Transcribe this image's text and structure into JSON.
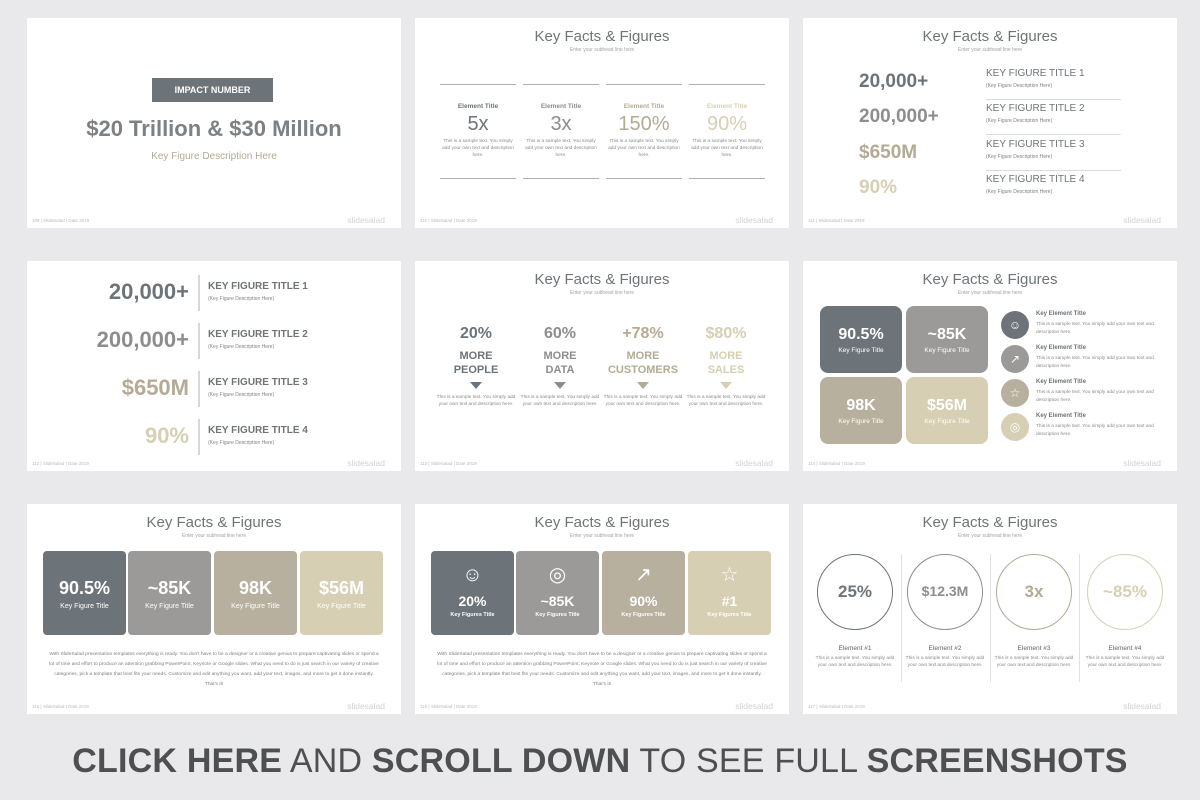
{
  "common": {
    "title": "Key Facts & Figures",
    "subhead": "Enter your subhead line here",
    "brand": "slidesalad"
  },
  "footers": [
    "108 | SlideSalad | Date 2019",
    "110 | SlideSalad | Date 2019",
    "111 | SlideSalad | Date 2019",
    "112 | SlideSalad | Date 2019",
    "113 | SlideSalad | Date 2019",
    "114 | SlideSalad | Date 2019",
    "115 | SlideSalad | Date 2019",
    "116 | SlideSalad | Date 2019",
    "117 | SlideSalad | Date 2019"
  ],
  "slide1": {
    "badge": "IMPACT NUMBER",
    "headline": "$20 Trillion & $30 Million",
    "desc": "Key Figure Description Here"
  },
  "slide2": {
    "sample": "This is a sample text. You simply add your own text and description here.",
    "cols": [
      {
        "title": "Element Title",
        "value": "5x"
      },
      {
        "title": "Element Title",
        "value": "3x"
      },
      {
        "title": "Element Title",
        "value": "150%"
      },
      {
        "title": "Element Title",
        "value": "90%"
      }
    ]
  },
  "slide3": {
    "rows": [
      {
        "value": "20,000+",
        "title": "KEY FIGURE TITLE 1",
        "desc": "(Key Figure Description Here)"
      },
      {
        "value": "200,000+",
        "title": "KEY FIGURE TITLE 2",
        "desc": "(Key Figure Description Here)"
      },
      {
        "value": "$650M",
        "title": "KEY FIGURE TITLE 3",
        "desc": "(Key Figure Description Here)"
      },
      {
        "value": "90%",
        "title": "KEY FIGURE TITLE 4",
        "desc": "(Key Figure Description Here)"
      }
    ]
  },
  "slide4": {
    "rows": [
      {
        "value": "20,000+",
        "title": "KEY FIGURE TITLE 1",
        "desc": "(Key Figure Description Here)"
      },
      {
        "value": "200,000+",
        "title": "KEY FIGURE TITLE 2",
        "desc": "(Key Figure Description Here)"
      },
      {
        "value": "$650M",
        "title": "KEY FIGURE TITLE 3",
        "desc": "(Key Figure Description Here)"
      },
      {
        "value": "90%",
        "title": "KEY FIGURE TITLE 4",
        "desc": "(Key Figure Description Here)"
      }
    ]
  },
  "slide5": {
    "sample": "This is a sample text. You simply add your own text and description here.",
    "cols": [
      {
        "value": "20%",
        "line1": "MORE",
        "line2": "PEOPLE"
      },
      {
        "value": "60%",
        "line1": "MORE",
        "line2": "DATA"
      },
      {
        "value": "+78%",
        "line1": "MORE",
        "line2": "CUSTOMERS"
      },
      {
        "value": "$80%",
        "line1": "MORE",
        "line2": "SALES"
      }
    ]
  },
  "slide6": {
    "boxes": [
      {
        "value": "90.5%",
        "label": "Key Figure Title"
      },
      {
        "value": "~85K",
        "label": "Key Figure Title"
      },
      {
        "value": "98K",
        "label": "Key Figure Title"
      },
      {
        "value": "$56M",
        "label": "Key Figure Title"
      }
    ],
    "items": [
      {
        "title": "Key Element Title",
        "icon": "people-icon",
        "glyph": "☺"
      },
      {
        "title": "Key Element Title",
        "icon": "chart-icon",
        "glyph": "↗"
      },
      {
        "title": "Key Element Title",
        "icon": "award-icon",
        "glyph": "☆"
      },
      {
        "title": "Key Element Title",
        "icon": "globe-icon",
        "glyph": "◎"
      }
    ],
    "sample": "This is a sample text. You simply add your own text and description here."
  },
  "slide7": {
    "boxes": [
      {
        "value": "90.5%",
        "label": "Key Figure Title"
      },
      {
        "value": "~85K",
        "label": "Key Figure Title"
      },
      {
        "value": "98K",
        "label": "Key Figure Title"
      },
      {
        "value": "$56M",
        "label": "Key Figure Title"
      }
    ],
    "paragraph": "With SlideSalad presentation templates everything is ready. You don't have to be a designer or a creative genius to prepare captivating slides or spend a lot of time and effort to produce an attention grabbing PowerPoint, Keynote or Google slides. What you need to do is just search in our variety of creative categories, pick a template that best fits your needs. Customize and edit anything you want, add your text, images, and more to get it done instantly. That's it!"
  },
  "slide8": {
    "boxes": [
      {
        "value": "20%",
        "label": "Key Figures Title",
        "icon": "people-icon",
        "glyph": "☺"
      },
      {
        "value": "~85K",
        "label": "Key Figures Title",
        "icon": "globe-icon",
        "glyph": "◎"
      },
      {
        "value": "90%",
        "label": "Key Figures Title",
        "icon": "bar-chart-icon",
        "glyph": "↗"
      },
      {
        "value": "#1",
        "label": "Key Figures Title",
        "icon": "award-icon",
        "glyph": "☆"
      }
    ],
    "paragraph": "With SlideSalad presentation templates everything is ready. You don't have to be a designer or a creative genius to prepare captivating slides or spend a lot of time and effort to produce an attention grabbing PowerPoint, Keynote or Google slides. What you need to do is just search in our variety of creative categories, pick a template that best fits your needs. Customize and edit anything you want, add your text, images, and more to get it done instantly. That's it!"
  },
  "slide9": {
    "sample": "This is a sample text. You simply add your own text and description here.",
    "cols": [
      {
        "value": "25%",
        "title": "Element #1"
      },
      {
        "value": "$12.3M",
        "title": "Element #2"
      },
      {
        "value": "3x",
        "title": "Element #3"
      },
      {
        "value": "~85%",
        "title": "Element #4"
      }
    ]
  },
  "cta": {
    "p1": "CLICK HERE",
    "p2": " AND ",
    "p3": "SCROLL DOWN",
    "p4": " TO SEE FULL ",
    "p5": "SCREENSHOTS"
  },
  "colors": {
    "slate": "#6d7479",
    "grey": "#9b9a98",
    "taupe": "#b8b09e",
    "sand": "#d6cfb3",
    "background": "#e9e8ea"
  }
}
